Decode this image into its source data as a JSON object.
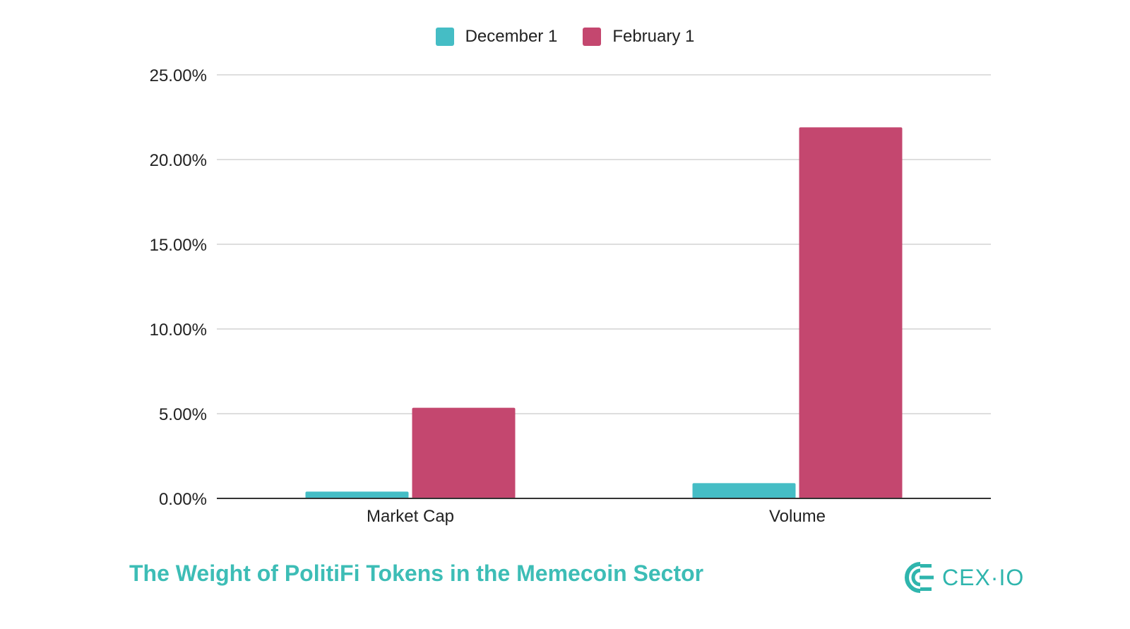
{
  "chart_data": {
    "type": "bar",
    "categories": [
      "Market Cap",
      "Volume"
    ],
    "series": [
      {
        "name": "December 1",
        "color": "#45bdc5",
        "values": [
          0.4,
          0.9
        ]
      },
      {
        "name": "February 1",
        "color": "#c4476f",
        "values": [
          5.35,
          21.9
        ]
      }
    ],
    "ylim": [
      0,
      25
    ],
    "yticks": [
      0,
      5,
      10,
      15,
      20,
      25
    ],
    "ytick_labels": [
      "0.00%",
      "5.00%",
      "10.00%",
      "15.00%",
      "20.00%",
      "25.00%"
    ],
    "grid": true,
    "legend_position": "top-center",
    "xlabel": "",
    "ylabel": ""
  },
  "caption": "The Weight of PolitiFi Tokens in the Memecoin Sector",
  "brand": {
    "name": "CEX·IO",
    "icon": "cex-io-logo-icon",
    "color": "#2fb5ad"
  },
  "colors": {
    "caption": "#3dbdb6",
    "grid": "#d3d3d3",
    "axis": "#333333"
  }
}
